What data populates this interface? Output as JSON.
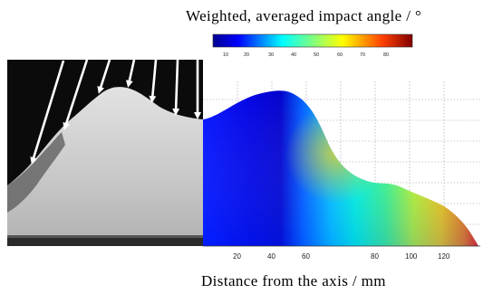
{
  "figure": {
    "colorbar_title": "Weighted, averaged impact angle / °",
    "x_axis_title": "Distance from the axis / mm",
    "colorbar_ticks": [
      "10",
      "20",
      "30",
      "40",
      "50",
      "60",
      "70",
      "80"
    ],
    "x_ticks": [
      "20",
      "40",
      "60",
      "80",
      "100",
      "120"
    ],
    "colormap": [
      "#00008f",
      "#0000ff",
      "#0080ff",
      "#00ffff",
      "#80ff80",
      "#ffff00",
      "#ff8000",
      "#ff0000",
      "#800000"
    ],
    "photo_colors": {
      "background": "#0d0d0d",
      "deposit": "#c9c9c9",
      "substrate": "#2a2a2a"
    },
    "arrow_color": "#ffffff",
    "panel_left": "photo-of-sprayed-deposit-profile-with-particle-impact-arrows",
    "panel_right": "impact-angle-colormap-over-deposit-profile"
  }
}
